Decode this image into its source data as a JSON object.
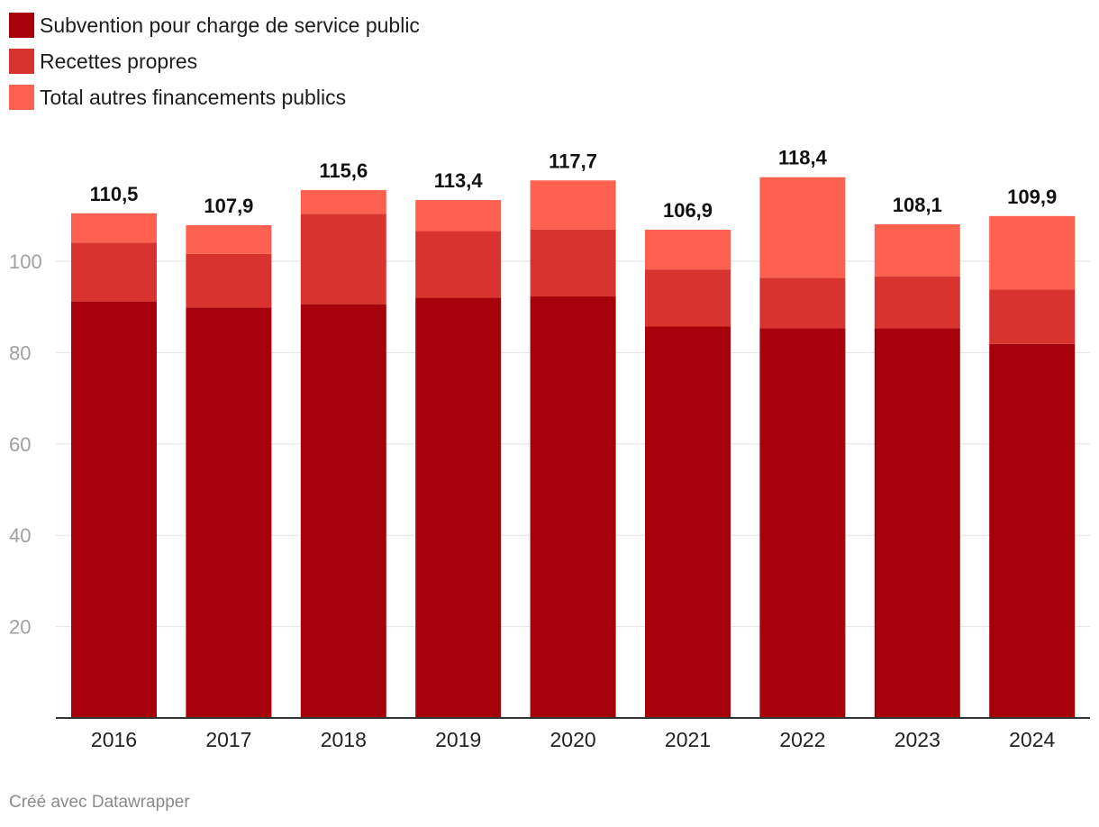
{
  "chart_data": {
    "type": "bar",
    "stacked": true,
    "categories": [
      "2016",
      "2017",
      "2018",
      "2019",
      "2020",
      "2021",
      "2022",
      "2023",
      "2024"
    ],
    "series": [
      {
        "name": "Subvention pour charge de service public",
        "color": "#a6000a",
        "values": [
          91.2,
          89.9,
          90.6,
          92.0,
          92.3,
          85.7,
          85.3,
          85.3,
          81.9
        ]
      },
      {
        "name": "Recettes propres",
        "color": "#d8332e",
        "values": [
          12.9,
          11.7,
          19.8,
          14.6,
          14.6,
          12.5,
          11.1,
          11.4,
          11.9
        ]
      },
      {
        "name": "Total autres financements publics",
        "color": "#ff6150",
        "values": [
          6.4,
          6.3,
          5.2,
          6.8,
          10.8,
          8.7,
          22.0,
          11.4,
          16.1
        ]
      }
    ],
    "totals": [
      "110,5",
      "107,9",
      "115,6",
      "113,4",
      "117,7",
      "106,9",
      "118,4",
      "108,1",
      "109,9"
    ],
    "yticks": [
      20,
      40,
      60,
      80,
      100
    ],
    "ylim": [
      0,
      120
    ],
    "grid": true,
    "legend": "top-left",
    "xlabel": "",
    "ylabel": ""
  },
  "footer": {
    "credit": "Créé avec Datawrapper"
  }
}
